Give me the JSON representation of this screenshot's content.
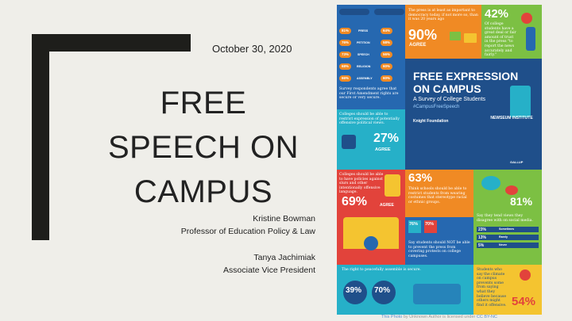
{
  "slide": {
    "date": "October 30, 2020",
    "title_lines": [
      "FREE",
      "SPEECH ON",
      "CAMPUS"
    ],
    "author_name": "Kristine Bowman",
    "author_role": "Professor of Education Policy & Law",
    "coauthor_name": "Tanya Jachimiak",
    "coauthor_role": "Associate Vice President"
  },
  "infographic": {
    "colors": {
      "orange": "#f08a24",
      "blue": "#2668b0",
      "dark_blue": "#1f4f8a",
      "green": "#7cc043",
      "teal": "#26b0c8",
      "red": "#e2433b",
      "yellow": "#f4c430"
    },
    "freedoms": [
      {
        "label": "PRESS",
        "v1": "81%",
        "v2": "64%"
      },
      {
        "label": "PETITION",
        "v1": "76%",
        "v2": "58%"
      },
      {
        "label": "SPEECH",
        "v1": "73%",
        "v2": "56%"
      },
      {
        "label": "RELIGION",
        "v1": "68%",
        "v2": "60%"
      },
      {
        "label": "ASSEMBLY",
        "v1": "66%",
        "v2": "60%"
      }
    ],
    "freedoms_text": "Survey respondents agree that our First Amendment rights are secure or very secure.",
    "press_text": "The press is at least as important to democracy today, if not more so, than it was 20 years ago",
    "press_pct": "90%",
    "press_agree": "AGREE",
    "news_text": "Of college students have a great deal or fair amount of trust in the press \"to report the news accurately and fairly.\"",
    "news_pct": "42%",
    "headline_1": "FREE EXPRESSION",
    "headline_2": "ON CAMPUS",
    "headline_sub": "A Survey of College Students",
    "hashtag": "#CampusFreeSpeech",
    "knight": "Knight Foundation",
    "newseum": "NEWSEUM INSTITUTE",
    "gallup": "GALLUP",
    "restrict_text": "Colleges should be able to restrict expression of potentially offensive political views.",
    "restrict_pct": "27%",
    "restrict_agree": "AGREE",
    "policy_text": "Colleges should be able to have policies against slurs and other intentionally offensive language.",
    "policy_pct": "69%",
    "policy_agree": "AGREE",
    "costume_text": "Think schools should be able to restrict students from wearing costumes that stereotype racial or ethnic groups.",
    "costume_pct": "63%",
    "social_pct": "81%",
    "social_text": "Say they tend views they disagree with on social media.",
    "social_bars": [
      {
        "v": "23%",
        "l": "Sometimes"
      },
      {
        "v": "13%",
        "l": "Rarely"
      },
      {
        "v": "5%",
        "l": "Never"
      }
    ],
    "press_block_pcts": [
      "76%",
      "70%"
    ],
    "protest_text": "Say students should NOT be able to prevent the press from covering protests on college campuses.",
    "assemble_text": "The right to peacefully assemble is secure.",
    "assemble_pcts": [
      "39%",
      "70%"
    ],
    "climate_text": "Students who say the climate on campus prevents some from saying what they believe because others might find it offensive.",
    "climate_pct": "54%"
  },
  "caption": {
    "prefix": "This Photo",
    "middle": " by Unknown Author is licensed under ",
    "license": "CC BY-NC"
  }
}
